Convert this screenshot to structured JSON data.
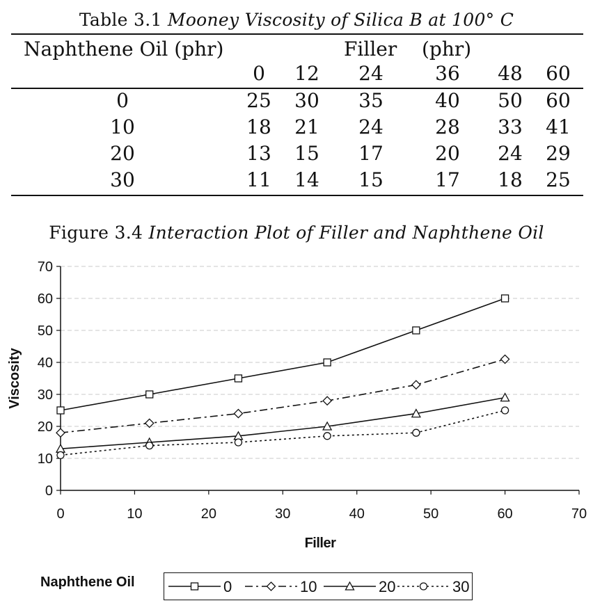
{
  "table": {
    "caption_prefix": "Table 3.1",
    "caption_title": "Mooney Viscosity of Silica B at 100° C",
    "row_header": "Naphthene Oil (phr)",
    "col_group_header": "Filler",
    "col_group_unit": "(phr)",
    "columns": [
      "0",
      "12",
      "24",
      "36",
      "48",
      "60"
    ],
    "rows": [
      {
        "label": "0",
        "values": [
          "25",
          "30",
          "35",
          "40",
          "50",
          "60"
        ]
      },
      {
        "label": "10",
        "values": [
          "18",
          "21",
          "24",
          "28",
          "33",
          "41"
        ]
      },
      {
        "label": "20",
        "values": [
          "13",
          "15",
          "17",
          "20",
          "24",
          "29"
        ]
      },
      {
        "label": "30",
        "values": [
          "11",
          "14",
          "15",
          "17",
          "18",
          "25"
        ]
      }
    ]
  },
  "figure": {
    "caption_prefix": "Figure 3.4",
    "caption_title": "Interaction Plot of Filler and Naphthene Oil"
  },
  "chart_data": {
    "type": "line",
    "xlabel": "Filler",
    "ylabel": "Viscosity",
    "xlim": [
      0,
      70
    ],
    "ylim": [
      0,
      70
    ],
    "xticks": [
      "0",
      "10",
      "20",
      "30",
      "40",
      "50",
      "60",
      "70"
    ],
    "yticks": [
      "0",
      "10",
      "20",
      "30",
      "40",
      "50",
      "60",
      "70"
    ],
    "grid": "horizontal dashed",
    "legend_title": "Naphthene Oil",
    "legend_placement": "bottom",
    "x": [
      0,
      12,
      24,
      36,
      48,
      60
    ],
    "series": [
      {
        "name": "0",
        "values": [
          25,
          30,
          35,
          40,
          50,
          60
        ],
        "marker": "square",
        "dash": "solid"
      },
      {
        "name": "10",
        "values": [
          18,
          21,
          24,
          28,
          33,
          41
        ],
        "marker": "diamond",
        "dash": "dashdot"
      },
      {
        "name": "20",
        "values": [
          13,
          15,
          17,
          20,
          24,
          29
        ],
        "marker": "triangle",
        "dash": "solid"
      },
      {
        "name": "30",
        "values": [
          11,
          14,
          15,
          17,
          18,
          25
        ],
        "marker": "circle",
        "dash": "dotted"
      }
    ]
  }
}
